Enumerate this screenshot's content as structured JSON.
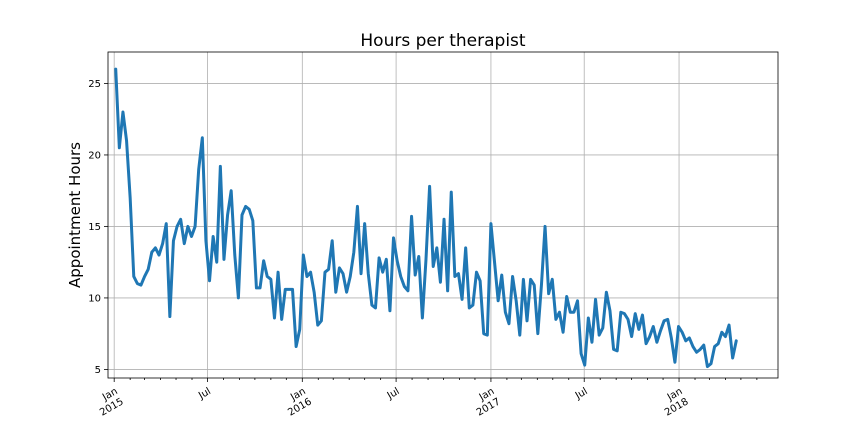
{
  "chart_data": {
    "type": "line",
    "title": "Hours per therapist",
    "xlabel": "",
    "ylabel": "Appointment Hours",
    "ylim": [
      4.4,
      27.2
    ],
    "xlim": [
      "2014-12-20",
      "2018-07-12"
    ],
    "grid": true,
    "legend": "none",
    "x_ticks": [
      {
        "date": "2015-01-01",
        "label1": "Jan",
        "label2": "2015"
      },
      {
        "date": "2015-07-01",
        "label1": "Jul",
        "label2": ""
      },
      {
        "date": "2016-01-01",
        "label1": "Jan",
        "label2": "2016"
      },
      {
        "date": "2016-07-01",
        "label1": "Jul",
        "label2": ""
      },
      {
        "date": "2017-01-01",
        "label1": "Jan",
        "label2": "2017"
      },
      {
        "date": "2017-07-01",
        "label1": "Jul",
        "label2": ""
      },
      {
        "date": "2018-01-01",
        "label1": "Jan",
        "label2": "2018"
      }
    ],
    "y_ticks": [
      "5",
      "10",
      "15",
      "20",
      "25"
    ],
    "series": [
      {
        "color": "#1f77b4",
        "start": "2015-01-04",
        "period": "weekly",
        "values": [
          26.0,
          20.5,
          23.0,
          21.0,
          17.0,
          11.5,
          11.0,
          10.9,
          11.5,
          12.0,
          13.2,
          13.5,
          13.0,
          13.8,
          15.2,
          8.7,
          14.0,
          15.0,
          15.5,
          13.8,
          15.0,
          14.3,
          15.0,
          19.0,
          21.2,
          14.0,
          11.2,
          14.3,
          12.5,
          19.2,
          12.7,
          15.8,
          17.5,
          13.0,
          10.0,
          15.8,
          16.4,
          16.2,
          15.4,
          10.7,
          10.7,
          12.6,
          11.5,
          11.3,
          8.6,
          11.8,
          8.5,
          10.6,
          10.6,
          10.6,
          6.6,
          7.8,
          13.0,
          11.5,
          11.8,
          10.4,
          8.1,
          8.4,
          11.8,
          12.0,
          14.0,
          10.4,
          12.1,
          11.7,
          10.4,
          11.5,
          13.2,
          16.4,
          11.7,
          15.2,
          11.7,
          9.5,
          9.3,
          12.8,
          11.8,
          12.7,
          9.1,
          14.2,
          12.6,
          11.5,
          10.8,
          10.5,
          15.7,
          11.6,
          12.9,
          8.6,
          12.7,
          17.8,
          12.2,
          13.5,
          11.1,
          15.5,
          10.5,
          17.4,
          11.5,
          11.7,
          9.9,
          13.5,
          9.3,
          9.5,
          11.8,
          11.2,
          7.5,
          7.4,
          15.2,
          12.5,
          9.8,
          11.6,
          9.0,
          8.2,
          11.5,
          9.8,
          7.4,
          11.3,
          8.4,
          11.3,
          10.9,
          7.5,
          10.9,
          15.0,
          10.3,
          11.3,
          8.5,
          9.0,
          7.6,
          10.1,
          9.0,
          9.0,
          9.8,
          6.1,
          5.3,
          8.6,
          6.9,
          9.9,
          7.4,
          7.9,
          10.4,
          9.1,
          6.4,
          6.3,
          9.0,
          8.9,
          8.5,
          7.3,
          8.9,
          7.8,
          8.8,
          6.8,
          7.3,
          8.0,
          6.9,
          7.7,
          8.4,
          8.5,
          7.2,
          5.5,
          8.0,
          7.6,
          7.0,
          7.2,
          6.6,
          6.2,
          6.4,
          6.7,
          5.2,
          5.4,
          6.6,
          6.8,
          7.6,
          7.3,
          8.1,
          5.8,
          7.0
        ]
      }
    ]
  }
}
